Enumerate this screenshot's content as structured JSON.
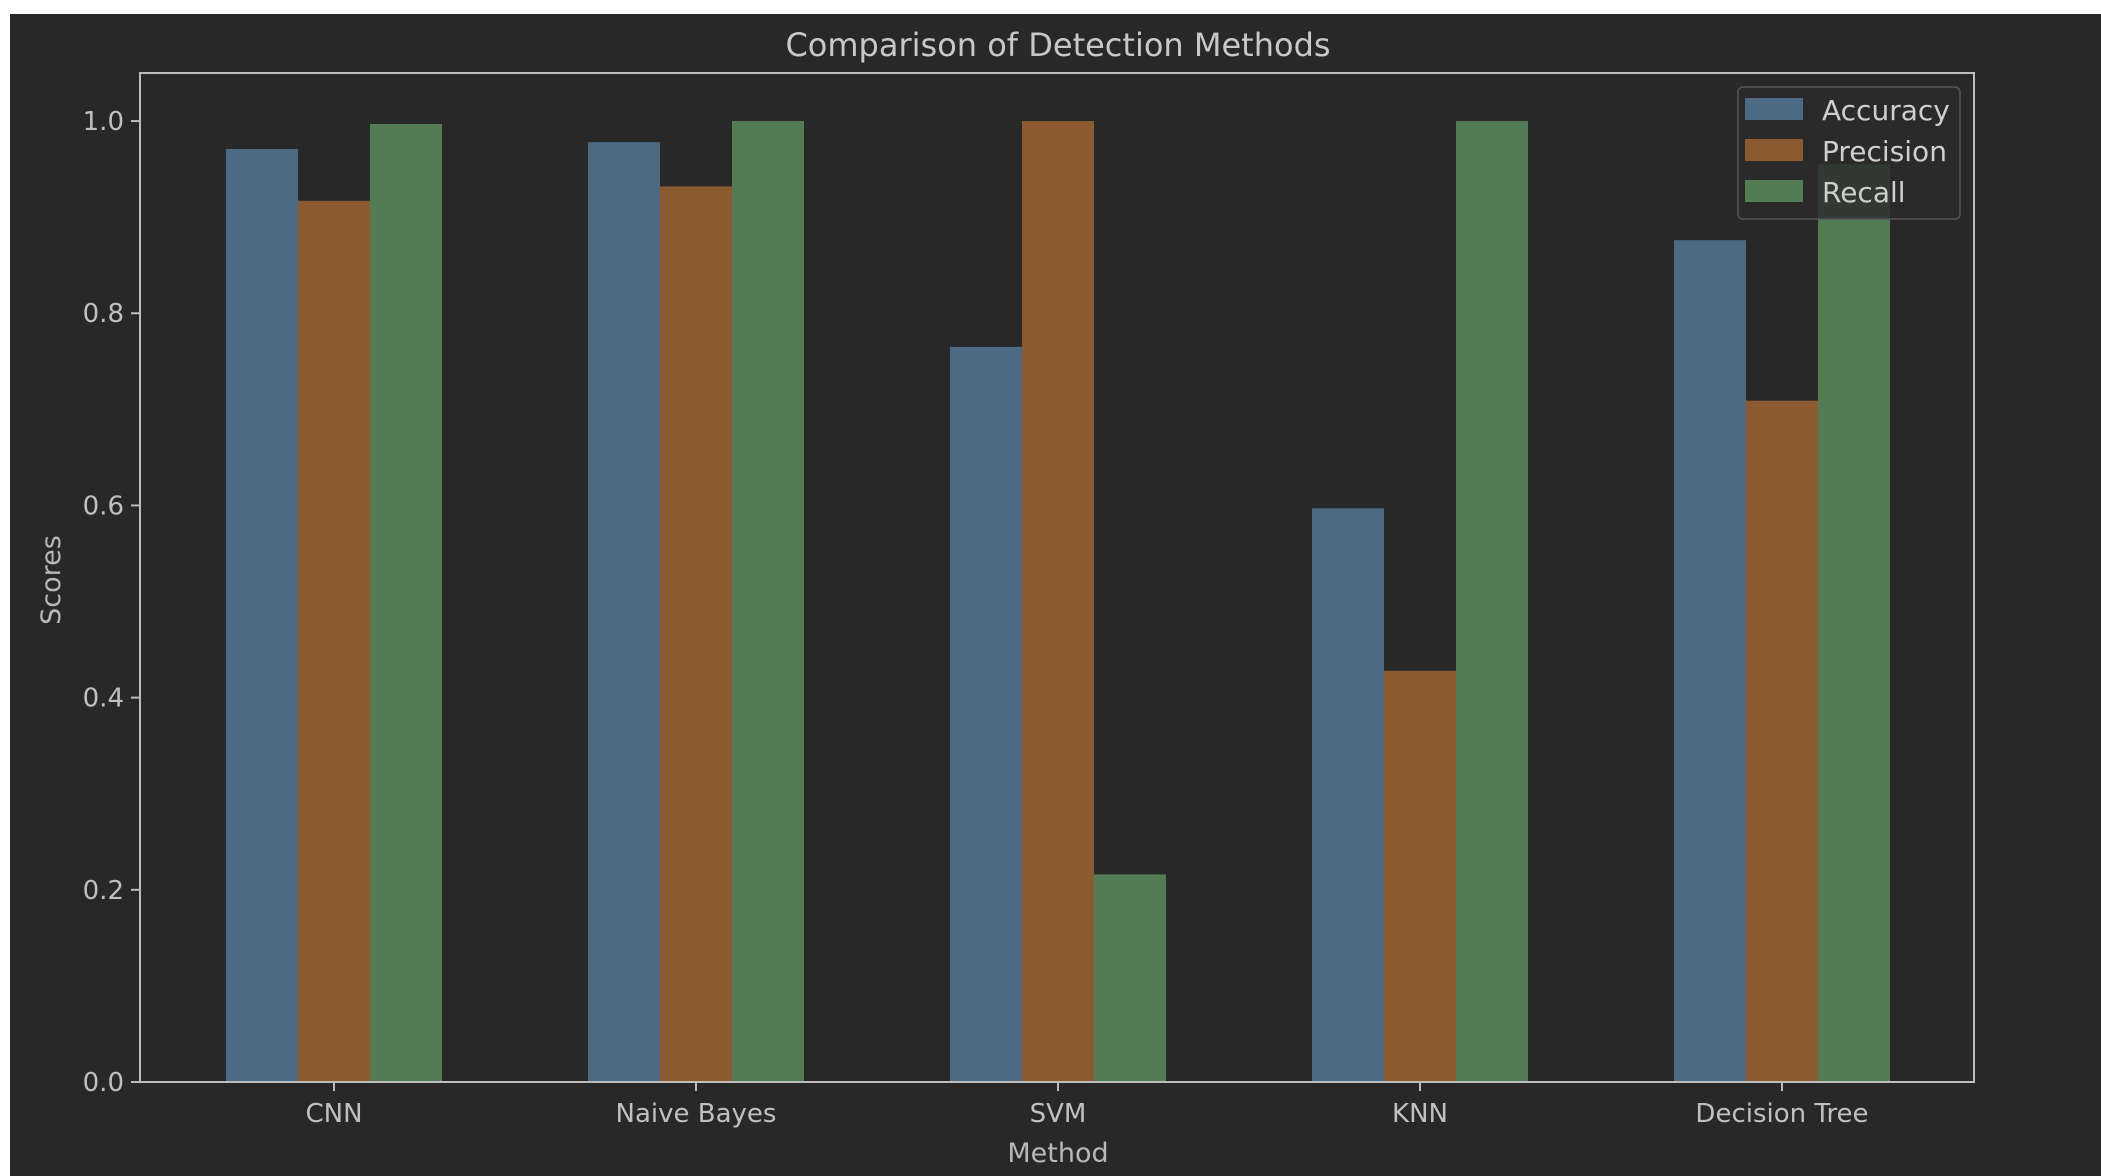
{
  "chart_data": {
    "type": "bar",
    "title": "Comparison of Detection Methods",
    "xlabel": "Method",
    "ylabel": "Scores",
    "categories": [
      "CNN",
      "Naive Bayes",
      "SVM",
      "KNN",
      "Decision Tree"
    ],
    "series": [
      {
        "name": "Accuracy",
        "color": "#4d6a85",
        "values": [
          0.971,
          0.978,
          0.765,
          0.597,
          0.876
        ]
      },
      {
        "name": "Precision",
        "color": "#8b5a31",
        "values": [
          0.917,
          0.932,
          1.0,
          0.428,
          0.709
        ]
      },
      {
        "name": "Recall",
        "color": "#537c54",
        "values": [
          0.997,
          1.0,
          0.216,
          1.0,
          0.955
        ]
      }
    ],
    "ylim": [
      0,
      1.05
    ],
    "yticks": [
      "0.0",
      "0.2",
      "0.4",
      "0.6",
      "0.8",
      "1.0"
    ],
    "legend_position": "top-right",
    "grid": false,
    "colors": {
      "figure_background": "#282828",
      "axes_frame": "#bdbdbd"
    }
  }
}
